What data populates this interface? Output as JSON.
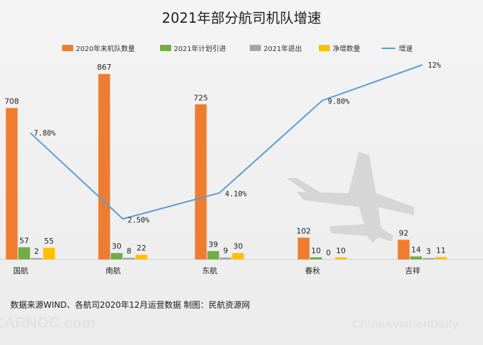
{
  "chart_data": {
    "type": "bar",
    "title": "2021年部分航司机队增速",
    "categories": [
      "国航",
      "南航",
      "东航",
      "春秋",
      "吉祥"
    ],
    "series": [
      {
        "name": "2020年末机队数量",
        "values": [
          708,
          867,
          725,
          102,
          92
        ],
        "color": "#ee7d31"
      },
      {
        "name": "2021年计划引进",
        "values": [
          57,
          30,
          39,
          10,
          14
        ],
        "color": "#70ad46"
      },
      {
        "name": "2021年退出",
        "values": [
          2,
          8,
          9,
          0,
          3
        ],
        "color": "#a5a5a5"
      },
      {
        "name": "净增数量",
        "values": [
          55,
          22,
          30,
          10,
          11
        ],
        "color": "#ffc000"
      }
    ],
    "line_series": {
      "name": "增速",
      "values": [
        7.8,
        2.5,
        4.1,
        9.8,
        12
      ],
      "labels": [
        "7.80%",
        "2.50%",
        "4.10%",
        "9.80%",
        "12%"
      ],
      "color": "#5b9bd5"
    },
    "bar_ylim": [
      0,
      900
    ],
    "line_ylim": [
      0,
      14
    ],
    "legend": "top"
  },
  "footer": {
    "source": "数据来源WIND、各航司2020年12月运营数据 制图：民航资源网"
  },
  "watermark": {
    "left": "CARNOC.com",
    "right": "ChinaAviationDaily"
  }
}
